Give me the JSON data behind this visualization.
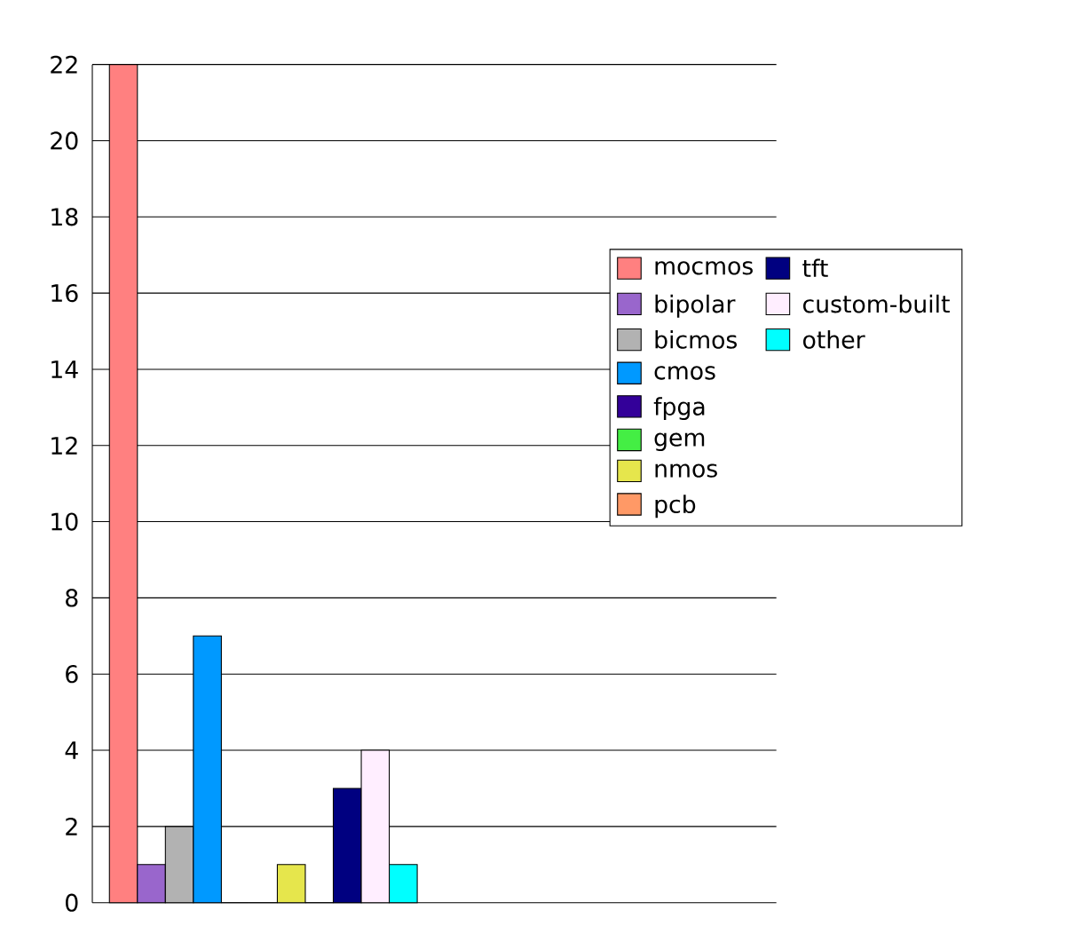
{
  "chart_data": {
    "type": "bar",
    "categories": [
      null
    ],
    "series": [
      {
        "name": "mocmos",
        "color": "#ff8080",
        "values": [
          22
        ]
      },
      {
        "name": "bipolar",
        "color": "#9966cc",
        "values": [
          1
        ]
      },
      {
        "name": "bicmos",
        "color": "#b2b2b2",
        "values": [
          2
        ]
      },
      {
        "name": "cmos",
        "color": "#0099ff",
        "values": [
          7
        ]
      },
      {
        "name": "fpga",
        "color": "#330099",
        "values": [
          0
        ]
      },
      {
        "name": "gem",
        "color": "#44ee44",
        "values": [
          0
        ]
      },
      {
        "name": "nmos",
        "color": "#e6e64c",
        "values": [
          1
        ]
      },
      {
        "name": "pcb",
        "color": "#ff9966",
        "values": [
          0
        ]
      },
      {
        "name": "tft",
        "color": "#000080",
        "values": [
          3
        ]
      },
      {
        "name": "custom-built",
        "color": "#ffeeff",
        "values": [
          4
        ]
      },
      {
        "name": "other",
        "color": "#00ffff",
        "values": [
          1
        ]
      }
    ],
    "ylim": [
      0,
      22
    ],
    "yticks": [
      0,
      2,
      4,
      6,
      8,
      10,
      12,
      14,
      16,
      18,
      20,
      22
    ],
    "grid": "y",
    "legend": "right"
  }
}
